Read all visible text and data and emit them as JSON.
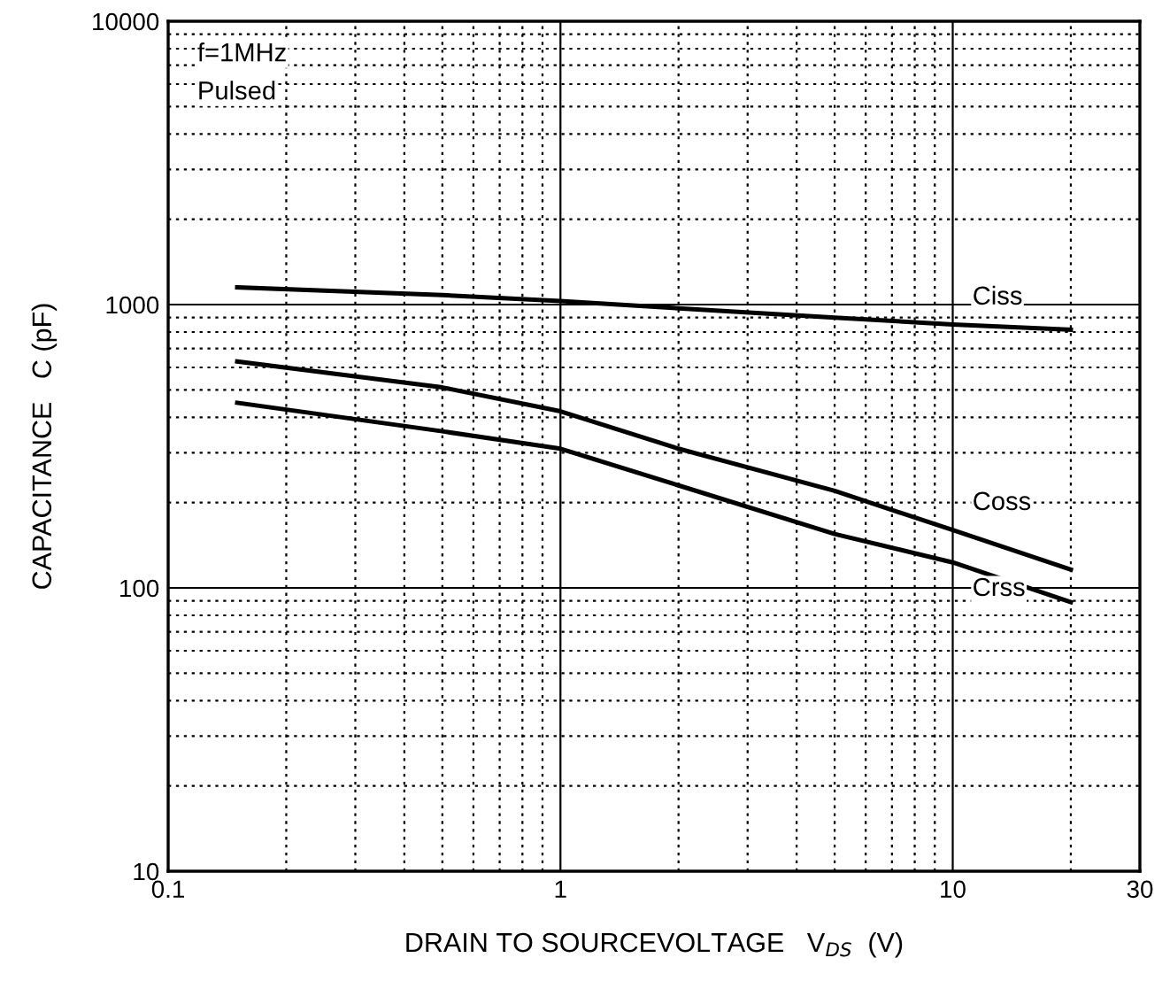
{
  "chart_data": {
    "type": "line",
    "xlabel": "DRAIN TO SOURCEVOLTAGE   V$_{DS}$  (V)",
    "ylabel": "CAPACITANCE   C (pF)",
    "log": "xy",
    "grid": true,
    "xlim": [
      0.1,
      30
    ],
    "ylim": [
      10,
      10000
    ],
    "xticks": [
      0.1,
      1,
      10,
      30
    ],
    "yticks": [
      10,
      100,
      1000,
      10000
    ],
    "x": [
      0.15,
      0.5,
      1,
      2,
      5,
      10,
      20
    ],
    "series": [
      {
        "name": "Ciss",
        "color": "#000000",
        "values": [
          1150,
          1080,
          1030,
          970,
          900,
          850,
          815
        ]
      },
      {
        "name": "Coss",
        "color": "#000000",
        "values": [
          630,
          510,
          420,
          310,
          220,
          160,
          116
        ]
      },
      {
        "name": "Crss",
        "color": "#000000",
        "values": [
          450,
          357,
          310,
          230,
          155,
          123,
          89
        ]
      }
    ],
    "annotations": [
      "f=1MHz",
      "Pulsed"
    ],
    "marker": "none",
    "line_style": "solid"
  }
}
